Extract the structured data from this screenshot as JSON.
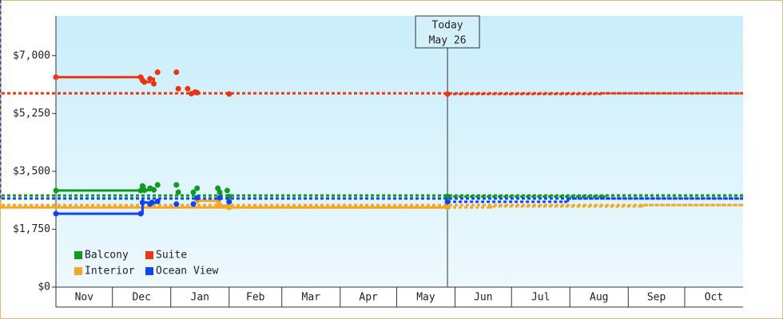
{
  "chart_data": {
    "type": "step-line",
    "xlim": [
      0,
      365
    ],
    "xticks": [
      {
        "value": 0,
        "label": "Nov"
      },
      {
        "value": 30,
        "label": "Dec"
      },
      {
        "value": 61,
        "label": "Jan"
      },
      {
        "value": 92,
        "label": "Feb"
      },
      {
        "value": 120,
        "label": "Mar"
      },
      {
        "value": 151,
        "label": "Apr"
      },
      {
        "value": 181,
        "label": "May"
      },
      {
        "value": 212,
        "label": "Jun"
      },
      {
        "value": 242,
        "label": "Jul"
      },
      {
        "value": 273,
        "label": "Aug"
      },
      {
        "value": 304,
        "label": "Sep"
      },
      {
        "value": 334,
        "label": "Oct"
      }
    ],
    "ylim": [
      0,
      8200
    ],
    "yticks": [
      {
        "value": 0,
        "label": "$0"
      },
      {
        "value": 1750,
        "label": "$1,750"
      },
      {
        "value": 3500,
        "label": "$3,500"
      },
      {
        "value": 5250,
        "label": "$5,250"
      },
      {
        "value": 7000,
        "label": "$7,000"
      }
    ],
    "annotation": {
      "x": 208,
      "lines": [
        "Today",
        "May 26"
      ]
    },
    "series": [
      {
        "name": "Balcony",
        "color": "#119922",
        "x": [
          0,
          45,
          46,
          47,
          50,
          52,
          54,
          64,
          65,
          73,
          75,
          86,
          87,
          91,
          92,
          208
        ],
        "values": [
          2920,
          2920,
          3060,
          2930,
          2990,
          2940,
          3090,
          3090,
          2870,
          2870,
          2990,
          2990,
          2870,
          2920,
          2740,
          2740
        ],
        "forecast_x": [
          208,
          290,
          292,
          365
        ],
        "forecast_values": [
          2740,
          2740,
          2770,
          2770
        ]
      },
      {
        "name": "Suite",
        "color": "#ee3311",
        "x": [
          0,
          45,
          46,
          47,
          50,
          52,
          54,
          64,
          65,
          70,
          72,
          74,
          75,
          92,
          208
        ],
        "values": [
          6350,
          6350,
          6250,
          6200,
          6300,
          6150,
          6500,
          6500,
          6000,
          6000,
          5850,
          5900,
          5880,
          5840,
          5840
        ],
        "forecast_x": [
          208,
          288,
          290,
          365
        ],
        "forecast_values": [
          5840,
          5840,
          5860,
          5860
        ]
      },
      {
        "name": "Interior",
        "color": "#f5a623",
        "x": [
          75,
          86,
          87,
          92,
          208
        ],
        "values": [
          2610,
          2610,
          2460,
          2410,
          2410
        ],
        "forecast_x": [
          208,
          230,
          232,
          310,
          312,
          365
        ],
        "forecast_values": [
          2410,
          2410,
          2440,
          2440,
          2480,
          2480
        ]
      },
      {
        "name": "Ocean View",
        "color": "#1144ee",
        "x": [
          0,
          45,
          46,
          50,
          51,
          54,
          64,
          73,
          75,
          87,
          92,
          208
        ],
        "values": [
          2220,
          2220,
          2560,
          2510,
          2560,
          2590,
          2510,
          2510,
          2700,
          2700,
          2580,
          2580
        ],
        "forecast_x": [
          208,
          270,
          272,
          365
        ],
        "forecast_values": [
          2580,
          2580,
          2680,
          2680
        ]
      }
    ]
  }
}
